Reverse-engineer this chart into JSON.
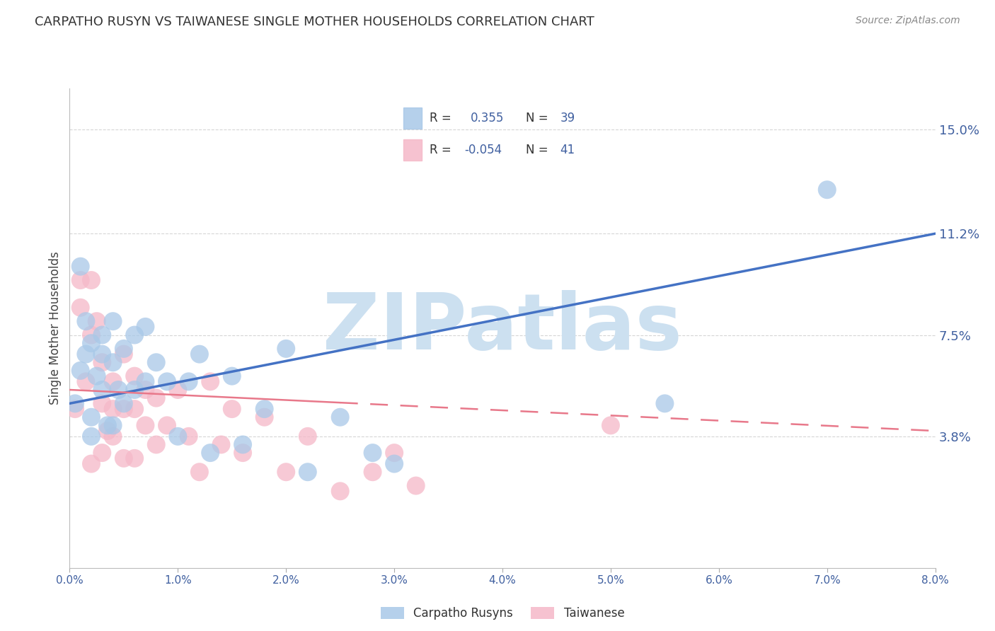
{
  "title": "CARPATHO RUSYN VS TAIWANESE SINGLE MOTHER HOUSEHOLDS CORRELATION CHART",
  "source": "Source: ZipAtlas.com",
  "ylabel": "Single Mother Households",
  "xlim": [
    0.0,
    0.08
  ],
  "ylim": [
    -0.01,
    0.165
  ],
  "ytick_vals": [
    0.038,
    0.075,
    0.112,
    0.15
  ],
  "ytick_labels": [
    "3.8%",
    "7.5%",
    "11.2%",
    "15.0%"
  ],
  "xtick_vals": [
    0.0,
    0.01,
    0.02,
    0.03,
    0.04,
    0.05,
    0.06,
    0.07,
    0.08
  ],
  "xtick_labels": [
    "0.0%",
    "1.0%",
    "2.0%",
    "3.0%",
    "4.0%",
    "5.0%",
    "6.0%",
    "7.0%",
    "8.0%"
  ],
  "carpatho_R": "0.355",
  "carpatho_N": "39",
  "taiwanese_R": "-0.054",
  "taiwanese_N": "41",
  "carpatho_color": "#a8c8e8",
  "taiwanese_color": "#f5b8c8",
  "carpatho_line_color": "#4472c4",
  "taiwanese_line_color": "#e8788a",
  "watermark": "ZIPatlas",
  "watermark_color": "#cce0f0",
  "background_color": "#ffffff",
  "title_color": "#333333",
  "label_color": "#4060a0",
  "grid_color": "#cccccc",
  "legend_text_color": "#333333",
  "carpatho_x": [
    0.0005,
    0.001,
    0.001,
    0.0015,
    0.0015,
    0.002,
    0.002,
    0.002,
    0.0025,
    0.003,
    0.003,
    0.003,
    0.0035,
    0.004,
    0.004,
    0.004,
    0.0045,
    0.005,
    0.005,
    0.006,
    0.006,
    0.007,
    0.007,
    0.008,
    0.009,
    0.01,
    0.011,
    0.012,
    0.013,
    0.015,
    0.016,
    0.018,
    0.02,
    0.022,
    0.025,
    0.028,
    0.03,
    0.055,
    0.07
  ],
  "carpatho_y": [
    0.05,
    0.062,
    0.1,
    0.068,
    0.08,
    0.072,
    0.045,
    0.038,
    0.06,
    0.075,
    0.068,
    0.055,
    0.042,
    0.08,
    0.065,
    0.042,
    0.055,
    0.07,
    0.05,
    0.075,
    0.055,
    0.058,
    0.078,
    0.065,
    0.058,
    0.038,
    0.058,
    0.068,
    0.032,
    0.06,
    0.035,
    0.048,
    0.07,
    0.025,
    0.045,
    0.032,
    0.028,
    0.05,
    0.128
  ],
  "taiwanese_x": [
    0.0005,
    0.001,
    0.001,
    0.0015,
    0.002,
    0.002,
    0.002,
    0.0025,
    0.003,
    0.003,
    0.003,
    0.0035,
    0.004,
    0.004,
    0.004,
    0.005,
    0.005,
    0.005,
    0.006,
    0.006,
    0.006,
    0.007,
    0.007,
    0.008,
    0.008,
    0.009,
    0.01,
    0.011,
    0.012,
    0.013,
    0.014,
    0.015,
    0.016,
    0.018,
    0.02,
    0.022,
    0.025,
    0.028,
    0.03,
    0.032,
    0.05
  ],
  "taiwanese_y": [
    0.048,
    0.095,
    0.085,
    0.058,
    0.095,
    0.075,
    0.028,
    0.08,
    0.065,
    0.05,
    0.032,
    0.04,
    0.058,
    0.048,
    0.038,
    0.068,
    0.048,
    0.03,
    0.06,
    0.048,
    0.03,
    0.055,
    0.042,
    0.052,
    0.035,
    0.042,
    0.055,
    0.038,
    0.025,
    0.058,
    0.035,
    0.048,
    0.032,
    0.045,
    0.025,
    0.038,
    0.018,
    0.025,
    0.032,
    0.02,
    0.042
  ],
  "blue_line_y0": 0.05,
  "blue_line_y1": 0.112,
  "pink_line_y0": 0.055,
  "pink_line_y1": 0.04
}
